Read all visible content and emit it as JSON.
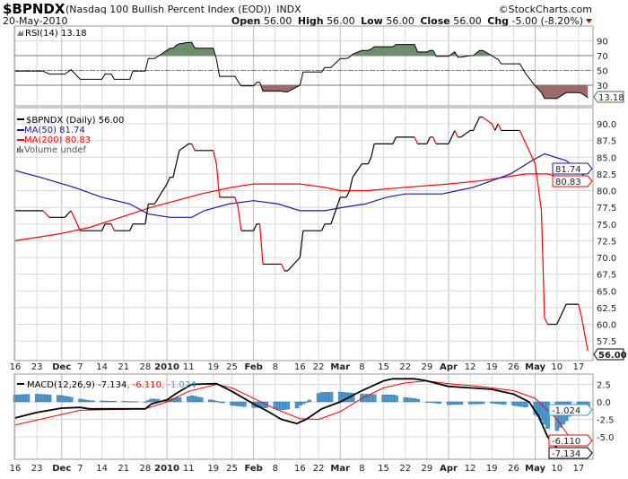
{
  "header": {
    "symbol": "$BPNDX",
    "name": "(Nasdaq 100 Bullish Percent Index (EOD))",
    "exchange": "INDX",
    "copyright": "©StockCharts.com",
    "date": "20-May-2010",
    "open_label": "Open",
    "open": "56.00",
    "high_label": "High",
    "high": "56.00",
    "low_label": "Low",
    "low": "56.00",
    "close_label": "Close",
    "close": "56.00",
    "chg_label": "Chg",
    "chg": "-5.00 (-8.20%)",
    "chg_icon": "down-triangle-icon"
  },
  "colors": {
    "price_up": "#000000",
    "price_down": "#ff0000",
    "ma50": "#1a1aa0",
    "ma200": "#ff0000",
    "rsi_over": "#6b8f6b",
    "rsi_under": "#a06868",
    "macd": "#000000",
    "signal": "#ff0000",
    "hist": "#4a9ad0",
    "grid": "#d8d8d8"
  },
  "chart_data": [
    {
      "type": "line",
      "panel": "rsi",
      "legend": "RSI(14) 13.18",
      "yticks": [
        30,
        50,
        70,
        90
      ],
      "levels": [
        30,
        50,
        70
      ],
      "last_tag": "13.18",
      "series": "rsi"
    },
    {
      "type": "line",
      "panel": "price",
      "legend": [
        {
          "label": "$BPNDX (Daily) 56.00",
          "color": "#000000"
        },
        {
          "label": "MA(50) 81.74",
          "color": "#1a1aa0"
        },
        {
          "label": "MA(200) 80.83",
          "color": "#ff0000"
        },
        {
          "label": "Volume undef",
          "color": "#555555"
        }
      ],
      "yticks": [
        "57.5",
        "60.0",
        "62.5",
        "65.0",
        "67.5",
        "70.0",
        "72.5",
        "75.0",
        "77.5",
        "80.0",
        "82.5",
        "85.0",
        "87.5",
        "90.0"
      ],
      "ylim": [
        56,
        92
      ],
      "tags": {
        "ma50": "81.74",
        "ma200": "80.83",
        "close": "56.00"
      }
    },
    {
      "type": "line",
      "panel": "macd",
      "legend": {
        "name": "MACD(12,26,9)",
        "macd": "-7.134",
        "signal": "-6.110",
        "hist": "-1.024"
      },
      "yticks": [
        "2.5",
        "0.0",
        "-2.5",
        "-5.0"
      ],
      "tags": {
        "hist": "-1.024",
        "signal": "-6.110",
        "macd": "-7.134"
      }
    }
  ],
  "series": {
    "dates": [
      "2009-11-16",
      "2009-11-25",
      "2009-11-27",
      "2009-12-02",
      "2009-12-04",
      "2009-12-07",
      "2009-12-14",
      "2009-12-15",
      "2009-12-17",
      "2009-12-18",
      "2009-12-23",
      "2009-12-24",
      "2009-12-28",
      "2009-12-29",
      "2009-12-31",
      "2010-01-04",
      "2010-01-05",
      "2010-01-06",
      "2010-01-07",
      "2010-01-08",
      "2010-01-11",
      "2010-01-12",
      "2010-01-13",
      "2010-01-19",
      "2010-01-20",
      "2010-01-21",
      "2010-01-26",
      "2010-01-27",
      "2010-01-28",
      "2010-02-01",
      "2010-02-02",
      "2010-02-03",
      "2010-02-04",
      "2010-02-10",
      "2010-02-11",
      "2010-02-12",
      "2010-02-16",
      "2010-02-17",
      "2010-02-23",
      "2010-02-24",
      "2010-02-26",
      "2010-03-01",
      "2010-03-03",
      "2010-03-04",
      "2010-03-05",
      "2010-03-08",
      "2010-03-10",
      "2010-03-11",
      "2010-03-12",
      "2010-03-18",
      "2010-03-19",
      "2010-03-25",
      "2010-03-26",
      "2010-03-29",
      "2010-03-30",
      "2010-03-31",
      "2010-04-01",
      "2010-04-05",
      "2010-04-07",
      "2010-04-08",
      "2010-04-09",
      "2010-04-12",
      "2010-04-13",
      "2010-04-15",
      "2010-04-16",
      "2010-04-19",
      "2010-04-20",
      "2010-04-21",
      "2010-04-22",
      "2010-04-28",
      "2010-04-30",
      "2010-05-03",
      "2010-05-05",
      "2010-05-06",
      "2010-05-07",
      "2010-05-10",
      "2010-05-13",
      "2010-05-17",
      "2010-05-18",
      "2010-05-20"
    ],
    "price": [
      77,
      77,
      76,
      76,
      77,
      74,
      74,
      75,
      75,
      74,
      74,
      75,
      75,
      78,
      78,
      81,
      82,
      82,
      84,
      86,
      87,
      87,
      86,
      86,
      84,
      79,
      79,
      77.5,
      74,
      74,
      75,
      75,
      69,
      69,
      68,
      68,
      70,
      74,
      74,
      75,
      75,
      79,
      79,
      80,
      82,
      84,
      84,
      85,
      87,
      87,
      88,
      88,
      87,
      87,
      88,
      88,
      87,
      87,
      89,
      88,
      88,
      89,
      89,
      91,
      91,
      90,
      89,
      90,
      89,
      89,
      87,
      84,
      77,
      61,
      60,
      60,
      63,
      63,
      61,
      56
    ],
    "rsi": [
      49,
      49,
      45,
      45,
      51,
      38,
      38,
      45,
      45,
      38,
      38,
      49,
      49,
      66,
      66,
      77,
      80,
      80,
      84,
      86,
      88,
      88,
      80,
      80,
      65,
      42,
      42,
      35,
      29,
      29,
      34,
      34,
      22,
      22,
      21,
      21,
      30,
      48,
      48,
      54,
      54,
      66,
      66,
      68,
      72,
      77,
      77,
      79,
      82,
      82,
      85,
      85,
      75,
      75,
      77,
      77,
      69,
      69,
      75,
      68,
      68,
      70,
      70,
      77,
      77,
      70,
      67,
      65,
      59,
      59,
      45,
      29,
      20,
      12,
      12,
      12,
      20,
      20,
      19,
      13.18
    ],
    "ma50": [
      [
        "2009-11-16",
        83
      ],
      [
        "2009-11-24",
        82
      ],
      [
        "2009-12-05",
        80.5
      ],
      [
        "2009-12-14",
        79
      ],
      [
        "2009-12-23",
        78
      ],
      [
        "2009-12-29",
        76.5
      ],
      [
        "2010-01-05",
        76
      ],
      [
        "2010-01-12",
        76
      ],
      [
        "2010-01-16",
        77
      ],
      [
        "2010-01-24",
        78
      ],
      [
        "2010-02-01",
        78.5
      ],
      [
        "2010-02-09",
        78
      ],
      [
        "2010-02-16",
        77
      ],
      [
        "2010-02-24",
        77
      ],
      [
        "2010-03-02",
        77.5
      ],
      [
        "2010-03-09",
        78
      ],
      [
        "2010-03-16",
        79
      ],
      [
        "2010-03-22",
        79.5
      ],
      [
        "2010-04-03",
        79.5
      ],
      [
        "2010-04-13",
        80.5
      ],
      [
        "2010-04-25",
        82.5
      ],
      [
        "2010-05-02",
        84.5
      ],
      [
        "2010-05-06",
        85.5
      ],
      [
        "2010-05-13",
        84.5
      ],
      [
        "2010-05-20",
        81.74
      ]
    ],
    "ma200": [
      [
        "2009-11-16",
        72.5
      ],
      [
        "2009-11-30",
        73.5
      ],
      [
        "2009-12-10",
        74.5
      ],
      [
        "2009-12-20",
        76
      ],
      [
        "2009-12-30",
        77.5
      ],
      [
        "2010-01-07",
        78.5
      ],
      [
        "2010-01-15",
        79.5
      ],
      [
        "2010-01-25",
        80.5
      ],
      [
        "2010-02-01",
        81
      ],
      [
        "2010-02-16",
        81
      ],
      [
        "2010-02-24",
        80.5
      ],
      [
        "2010-03-01",
        80
      ],
      [
        "2010-03-10",
        80
      ],
      [
        "2010-03-22",
        80.5
      ],
      [
        "2010-04-05",
        81
      ],
      [
        "2010-04-16",
        81.5
      ],
      [
        "2010-04-30",
        82.5
      ],
      [
        "2010-05-07",
        82.5
      ],
      [
        "2010-05-15",
        81.5
      ],
      [
        "2010-05-20",
        80.83
      ]
    ],
    "macd": [
      [
        "2009-11-16",
        -2.3
      ],
      [
        "2009-11-23",
        -1.5
      ],
      [
        "2009-12-01",
        -0.9
      ],
      [
        "2009-12-07",
        -0.8
      ],
      [
        "2009-12-10",
        -1.0
      ],
      [
        "2009-12-28",
        -1.0
      ],
      [
        "2009-12-30",
        -0.3
      ],
      [
        "2010-01-04",
        0.3
      ],
      [
        "2010-01-07",
        1.2
      ],
      [
        "2010-01-12",
        2.5
      ],
      [
        "2010-01-20",
        2.6
      ],
      [
        "2010-01-25",
        1.5
      ],
      [
        "2010-02-01",
        -0.3
      ],
      [
        "2010-02-05",
        -1.2
      ],
      [
        "2010-02-10",
        -2.5
      ],
      [
        "2010-02-15",
        -3.1
      ],
      [
        "2010-02-18",
        -2.5
      ],
      [
        "2010-02-23",
        -1.0
      ],
      [
        "2010-03-01",
        0
      ],
      [
        "2010-03-08",
        1.6
      ],
      [
        "2010-03-15",
        3.0
      ],
      [
        "2010-03-18",
        3.3
      ],
      [
        "2010-03-25",
        3.3
      ],
      [
        "2010-03-29",
        3.0
      ],
      [
        "2010-04-05",
        2.2
      ],
      [
        "2010-04-12",
        2.0
      ],
      [
        "2010-04-19",
        1.8
      ],
      [
        "2010-04-26",
        1.1
      ],
      [
        "2010-05-01",
        0
      ],
      [
        "2010-05-04",
        -2
      ],
      [
        "2010-05-07",
        -5
      ],
      [
        "2010-05-10",
        -6.6
      ],
      [
        "2010-05-13",
        -7.1
      ],
      [
        "2010-05-18",
        -7.0
      ],
      [
        "2010-05-20",
        -7.134
      ]
    ],
    "signal": [
      [
        "2009-11-16",
        -3.3
      ],
      [
        "2009-12-01",
        -1.8
      ],
      [
        "2009-12-07",
        -1.2
      ],
      [
        "2009-12-28",
        -1.0
      ],
      [
        "2010-01-04",
        0
      ],
      [
        "2010-01-11",
        1.5
      ],
      [
        "2010-01-20",
        2.5
      ],
      [
        "2010-01-25",
        2.0
      ],
      [
        "2010-02-01",
        0.5
      ],
      [
        "2010-02-08",
        -1.0
      ],
      [
        "2010-02-16",
        -2.4
      ],
      [
        "2010-02-22",
        -2.5
      ],
      [
        "2010-03-01",
        -1.4
      ],
      [
        "2010-03-08",
        0.5
      ],
      [
        "2010-03-15",
        2.0
      ],
      [
        "2010-03-22",
        2.7
      ],
      [
        "2010-03-29",
        3.0
      ],
      [
        "2010-04-05",
        2.6
      ],
      [
        "2010-04-15",
        2.2
      ],
      [
        "2010-04-26",
        1.6
      ],
      [
        "2010-05-03",
        0.5
      ],
      [
        "2010-05-10",
        -2.5
      ],
      [
        "2010-05-14",
        -5
      ],
      [
        "2010-05-20",
        -6.11
      ]
    ]
  },
  "xaxis": [
    {
      "date": "2009-11-16",
      "label": "16"
    },
    {
      "date": "2009-11-23",
      "label": "23"
    },
    {
      "date": "2009-12-01",
      "label": "Dec",
      "bold": true
    },
    {
      "date": "2009-12-07",
      "label": "7"
    },
    {
      "date": "2009-12-14",
      "label": "14"
    },
    {
      "date": "2009-12-21",
      "label": "21"
    },
    {
      "date": "2009-12-28",
      "label": "28"
    },
    {
      "date": "2010-01-04",
      "label": "2010",
      "bold": true
    },
    {
      "date": "2010-01-11",
      "label": "11"
    },
    {
      "date": "2010-01-19",
      "label": "19"
    },
    {
      "date": "2010-01-25",
      "label": "25"
    },
    {
      "date": "2010-02-01",
      "label": "Feb",
      "bold": true
    },
    {
      "date": "2010-02-08",
      "label": "8"
    },
    {
      "date": "2010-02-16",
      "label": "16"
    },
    {
      "date": "2010-02-22",
      "label": "22"
    },
    {
      "date": "2010-03-01",
      "label": "Mar",
      "bold": true
    },
    {
      "date": "2010-03-08",
      "label": "8"
    },
    {
      "date": "2010-03-15",
      "label": "15"
    },
    {
      "date": "2010-03-22",
      "label": "22"
    },
    {
      "date": "2010-03-29",
      "label": "29"
    },
    {
      "date": "2010-04-05",
      "label": "Apr",
      "bold": true
    },
    {
      "date": "2010-04-12",
      "label": "12"
    },
    {
      "date": "2010-04-19",
      "label": "19"
    },
    {
      "date": "2010-04-26",
      "label": "26"
    },
    {
      "date": "2010-05-03",
      "label": "May",
      "bold": true
    },
    {
      "date": "2010-05-10",
      "label": "10"
    },
    {
      "date": "2010-05-17",
      "label": "17"
    }
  ]
}
